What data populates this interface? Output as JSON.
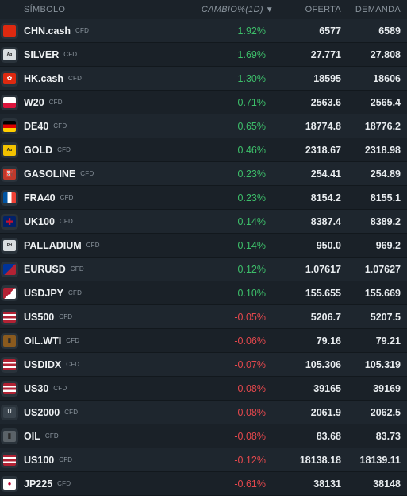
{
  "header": {
    "symbol": "SÍMBOLO",
    "change": "CAMBIO%(1D)",
    "sort_indicator": "▼",
    "bid": "OFERTA",
    "ask": "DEMANDA"
  },
  "rows": [
    {
      "symbol": "CHN.cash",
      "type": "CFD",
      "change": "1.92%",
      "bid": "6577",
      "ask": "6589",
      "direction": "up",
      "flag_icon": "china-flag-icon",
      "flag_bg": "#de2910",
      "flag_text": ""
    },
    {
      "symbol": "SILVER",
      "type": "CFD",
      "change": "1.69%",
      "bid": "27.771",
      "ask": "27.808",
      "direction": "up",
      "flag_icon": "silver-ag-icon",
      "flag_bg": "#d9dde0",
      "flag_text": "Ag"
    },
    {
      "symbol": "HK.cash",
      "type": "CFD",
      "change": "1.30%",
      "bid": "18595",
      "ask": "18606",
      "direction": "up",
      "flag_icon": "hong-kong-flag-icon",
      "flag_bg": "#de2910",
      "flag_text": "✿"
    },
    {
      "symbol": "W20",
      "type": "CFD",
      "change": "0.71%",
      "bid": "2563.6",
      "ask": "2565.4",
      "direction": "up",
      "flag_icon": "poland-flag-icon",
      "flag_bg": "linear-gradient(#ffffff 50%, #dc143c 50%)",
      "flag_text": ""
    },
    {
      "symbol": "DE40",
      "type": "CFD",
      "change": "0.65%",
      "bid": "18774.8",
      "ask": "18776.2",
      "direction": "up",
      "flag_icon": "germany-flag-icon",
      "flag_bg": "linear-gradient(#000000 33%, #dd0000 33%, #dd0000 66%, #ffce00 66%)",
      "flag_text": ""
    },
    {
      "symbol": "GOLD",
      "type": "CFD",
      "change": "0.46%",
      "bid": "2318.67",
      "ask": "2318.98",
      "direction": "up",
      "flag_icon": "gold-au-icon",
      "flag_bg": "#f2c200",
      "flag_text": "Au"
    },
    {
      "symbol": "GASOLINE",
      "type": "CFD",
      "change": "0.23%",
      "bid": "254.41",
      "ask": "254.89",
      "direction": "up",
      "flag_icon": "gasoline-icon",
      "flag_bg": "#c0392b",
      "flag_text": "⛽"
    },
    {
      "symbol": "FRA40",
      "type": "CFD",
      "change": "0.23%",
      "bid": "8154.2",
      "ask": "8155.1",
      "direction": "up",
      "flag_icon": "france-flag-icon",
      "flag_bg": "linear-gradient(90deg, #0055a4 33%, #ffffff 33%, #ffffff 66%, #ef4135 66%)",
      "flag_text": ""
    },
    {
      "symbol": "UK100",
      "type": "CFD",
      "change": "0.14%",
      "bid": "8387.4",
      "ask": "8389.2",
      "direction": "up",
      "flag_icon": "uk-flag-icon",
      "flag_bg": "#012169",
      "flag_text": "✚"
    },
    {
      "symbol": "PALLADIUM",
      "type": "CFD",
      "change": "0.14%",
      "bid": "950.0",
      "ask": "969.2",
      "direction": "up",
      "flag_icon": "palladium-pd-icon",
      "flag_bg": "#d9dde0",
      "flag_text": "Pd"
    },
    {
      "symbol": "EURUSD",
      "type": "CFD",
      "change": "0.12%",
      "bid": "1.07617",
      "ask": "1.07627",
      "direction": "up",
      "flag_icon": "eu-us-flag-icon",
      "flag_bg": "linear-gradient(135deg, #003399 50%, #b22234 50%)",
      "flag_text": ""
    },
    {
      "symbol": "USDJPY",
      "type": "CFD",
      "change": "0.10%",
      "bid": "155.655",
      "ask": "155.669",
      "direction": "up",
      "flag_icon": "us-japan-flag-icon",
      "flag_bg": "linear-gradient(135deg, #b22234 50%, #ffffff 50%)",
      "flag_text": "●"
    },
    {
      "symbol": "US500",
      "type": "CFD",
      "change": "-0.05%",
      "bid": "5206.7",
      "ask": "5207.5",
      "direction": "down",
      "flag_icon": "us-flag-icon",
      "flag_bg": "linear-gradient(#b22234 20%, #ffffff 20%, #ffffff 40%, #b22234 40%, #b22234 60%, #ffffff 60%, #ffffff 80%, #b22234 80%)",
      "flag_text": ""
    },
    {
      "symbol": "OIL.WTI",
      "type": "CFD",
      "change": "-0.06%",
      "bid": "79.16",
      "ask": "79.21",
      "direction": "down",
      "flag_icon": "oil-barrel-icon",
      "flag_bg": "#8a5a1e",
      "flag_text": "▮"
    },
    {
      "symbol": "USDIDX",
      "type": "CFD",
      "change": "-0.07%",
      "bid": "105.306",
      "ask": "105.319",
      "direction": "down",
      "flag_icon": "us-flag-icon",
      "flag_bg": "linear-gradient(#b22234 20%, #ffffff 20%, #ffffff 40%, #b22234 40%, #b22234 60%, #ffffff 60%, #ffffff 80%, #b22234 80%)",
      "flag_text": ""
    },
    {
      "symbol": "US30",
      "type": "CFD",
      "change": "-0.08%",
      "bid": "39165",
      "ask": "39169",
      "direction": "down",
      "flag_icon": "us-flag-icon",
      "flag_bg": "linear-gradient(#b22234 20%, #ffffff 20%, #ffffff 40%, #b22234 40%, #b22234 60%, #ffffff 60%, #ffffff 80%, #b22234 80%)",
      "flag_text": ""
    },
    {
      "symbol": "US2000",
      "type": "CFD",
      "change": "-0.08%",
      "bid": "2061.9",
      "ask": "2062.5",
      "direction": "down",
      "flag_icon": "us2000-u-icon",
      "flag_bg": "#3a444d",
      "flag_text": "U"
    },
    {
      "symbol": "OIL",
      "type": "CFD",
      "change": "-0.08%",
      "bid": "83.68",
      "ask": "83.73",
      "direction": "down",
      "flag_icon": "oil-canister-icon",
      "flag_bg": "#5a6268",
      "flag_text": "▮"
    },
    {
      "symbol": "US100",
      "type": "CFD",
      "change": "-0.12%",
      "bid": "18138.18",
      "ask": "18139.11",
      "direction": "down",
      "flag_icon": "us-flag-icon",
      "flag_bg": "linear-gradient(#b22234 20%, #ffffff 20%, #ffffff 40%, #b22234 40%, #b22234 60%, #ffffff 60%, #ffffff 80%, #b22234 80%)",
      "flag_text": ""
    },
    {
      "symbol": "JP225",
      "type": "CFD",
      "change": "-0.61%",
      "bid": "38131",
      "ask": "38148",
      "direction": "down",
      "flag_icon": "japan-flag-icon",
      "flag_bg": "#ffffff",
      "flag_text": "●"
    }
  ]
}
